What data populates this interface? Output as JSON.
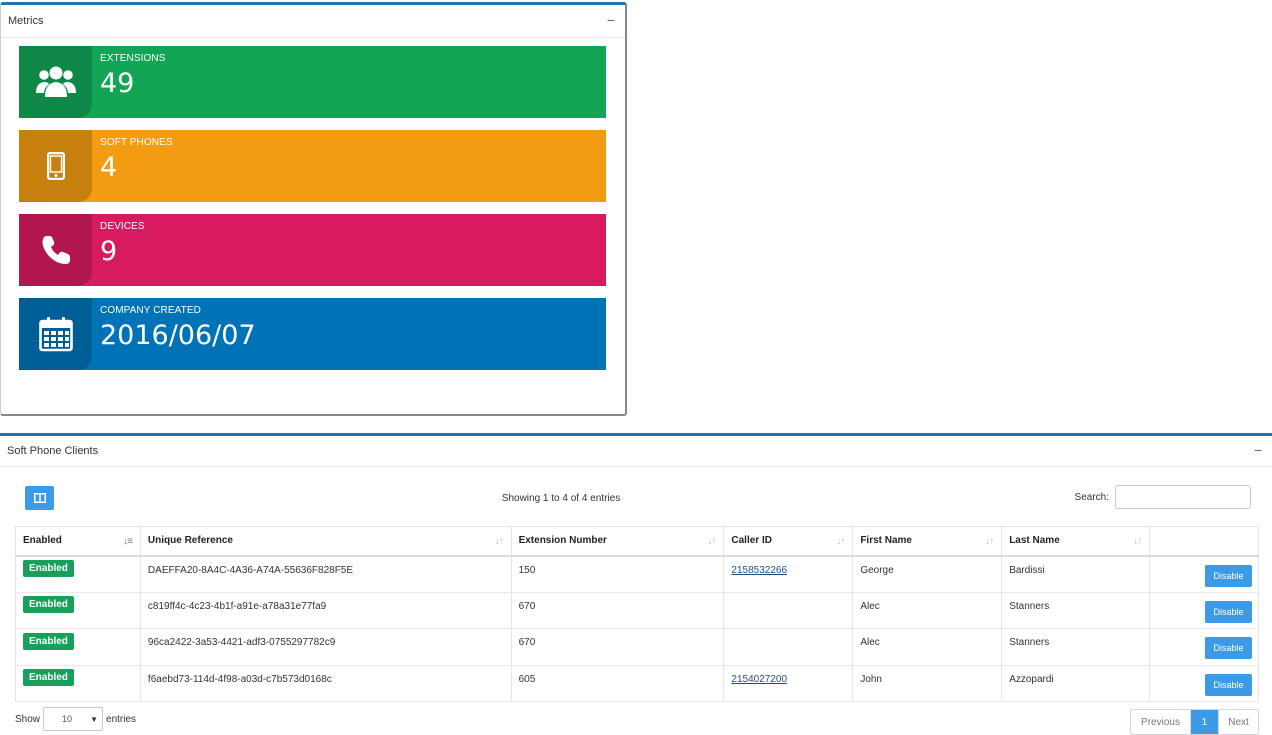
{
  "metrics": {
    "title": "Metrics",
    "collapse_symbol": "−",
    "tiles": [
      {
        "label": "EXTENSIONS",
        "value": "49",
        "icon": "users-icon",
        "color": "#13a556"
      },
      {
        "label": "SOFT PHONES",
        "value": "4",
        "icon": "mobile-phone-icon",
        "color": "#f39c12"
      },
      {
        "label": "DEVICES",
        "value": "9",
        "icon": "phone-icon",
        "color": "#d81b60"
      },
      {
        "label": "COMPANY CREATED",
        "value": "2016/06/07",
        "icon": "calendar-icon",
        "color": "#0073b7"
      }
    ]
  },
  "clients": {
    "title": "Soft Phone Clients",
    "collapse_symbol": "−",
    "columns_button_icon": "columns-icon",
    "info": "Showing 1 to 4 of 4 entries",
    "search_label": "Search:",
    "search_value": "",
    "headers": [
      "Enabled",
      "Unique Reference",
      "Extension Number",
      "Caller ID",
      "First Name",
      "Last Name",
      ""
    ],
    "rows": [
      {
        "enabled": "Enabled",
        "ref": "DAEFFA20-8A4C-4A36-A74A-55636F828F5E",
        "ext": "150",
        "caller": "2158532266",
        "first": "George",
        "last": "Bardissi",
        "action": "Disable"
      },
      {
        "enabled": "Enabled",
        "ref": "c819ff4c-4c23-4b1f-a91e-a78a31e77fa9",
        "ext": "670",
        "caller": "",
        "first": "Alec",
        "last": "Stanners",
        "action": "Disable"
      },
      {
        "enabled": "Enabled",
        "ref": "96ca2422-3a53-4421-adf3-0755297782c9",
        "ext": "670",
        "caller": "",
        "first": "Alec",
        "last": "Stanners",
        "action": "Disable"
      },
      {
        "enabled": "Enabled",
        "ref": "f6aebd73-114d-4f98-a03d-c7b573d0168c",
        "ext": "605",
        "caller": "2154027200",
        "first": "John",
        "last": "Azzopardi",
        "action": "Disable"
      }
    ],
    "length": {
      "prefix": "Show",
      "value": "10",
      "suffix": "entries"
    },
    "pagination": {
      "previous": "Previous",
      "current": "1",
      "next": "Next"
    },
    "accent": "#3c9ae6",
    "badge_color": "#17a05a"
  }
}
